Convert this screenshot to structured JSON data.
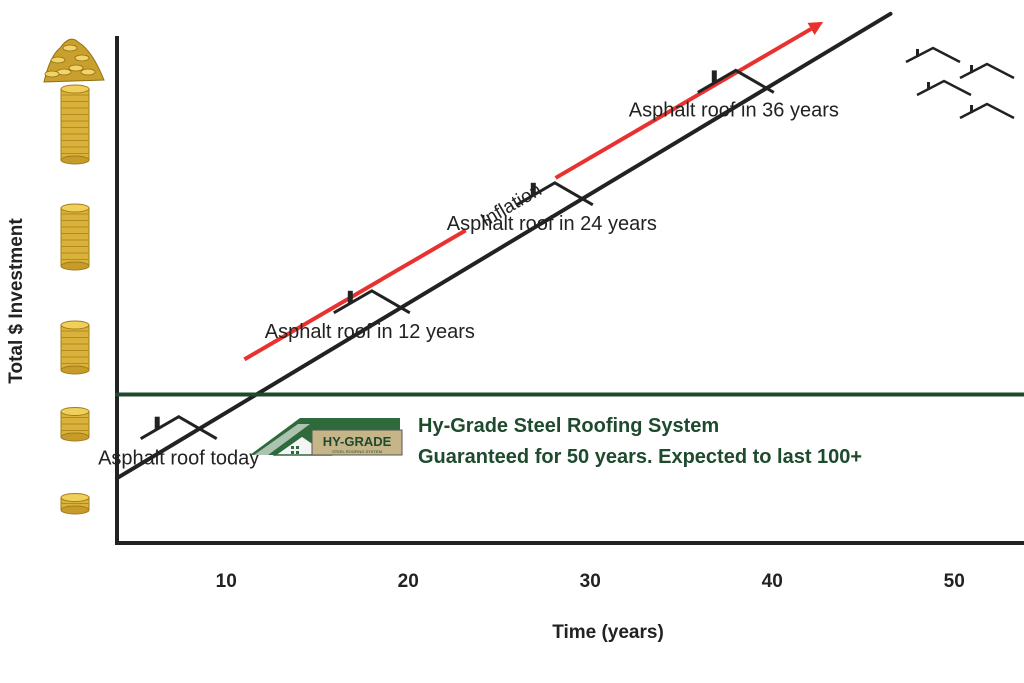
{
  "chart_data": {
    "type": "line",
    "title": "",
    "xlabel": "Time (years)",
    "ylabel": "Total $ Investment",
    "x_ticks": [
      10,
      20,
      30,
      40,
      50
    ],
    "xlim": [
      4,
      54
    ],
    "ylim": [
      0,
      100
    ],
    "grid": false,
    "series": [
      {
        "name": "Asphalt roof",
        "type": "line",
        "color": "#222222",
        "points": [
          [
            4,
            12
          ],
          [
            46.5,
            98
          ]
        ]
      },
      {
        "name": "Hy-Grade Steel Roofing System",
        "type": "line",
        "color": "#1e4a2d",
        "points": [
          [
            4,
            27.5
          ],
          [
            54,
            27.5
          ]
        ]
      }
    ],
    "annotations": [
      {
        "text": "Asphalt roof today",
        "x": 7.5,
        "y": 14.5
      },
      {
        "text": "Asphalt roof in 12 years",
        "x": 18,
        "y": 38
      },
      {
        "text": "Asphalt roof in 24 years",
        "x": 28,
        "y": 58
      },
      {
        "text": "Asphalt roof in 36 years",
        "x": 38,
        "y": 79
      }
    ],
    "inflation_arrow": {
      "label": "Inflation",
      "color": "#e8322f",
      "from": [
        11,
        34
      ],
      "to": [
        42.8,
        96.5
      ]
    },
    "steel_roof_labels": [
      "Hy-Grade Steel Roofing System",
      "Guaranteed for 50 years. Expected to last 100+"
    ],
    "logo_text": "HY-GRADE",
    "logo_subtext": "STEEL ROOFING SYSTEM",
    "coin_stacks": [
      1,
      3,
      6,
      8,
      10
    ],
    "money_pile_icon": "gold-pile-icon",
    "coin_icon": "coin-stack-icon",
    "house_icon": "house-outline-icon"
  }
}
